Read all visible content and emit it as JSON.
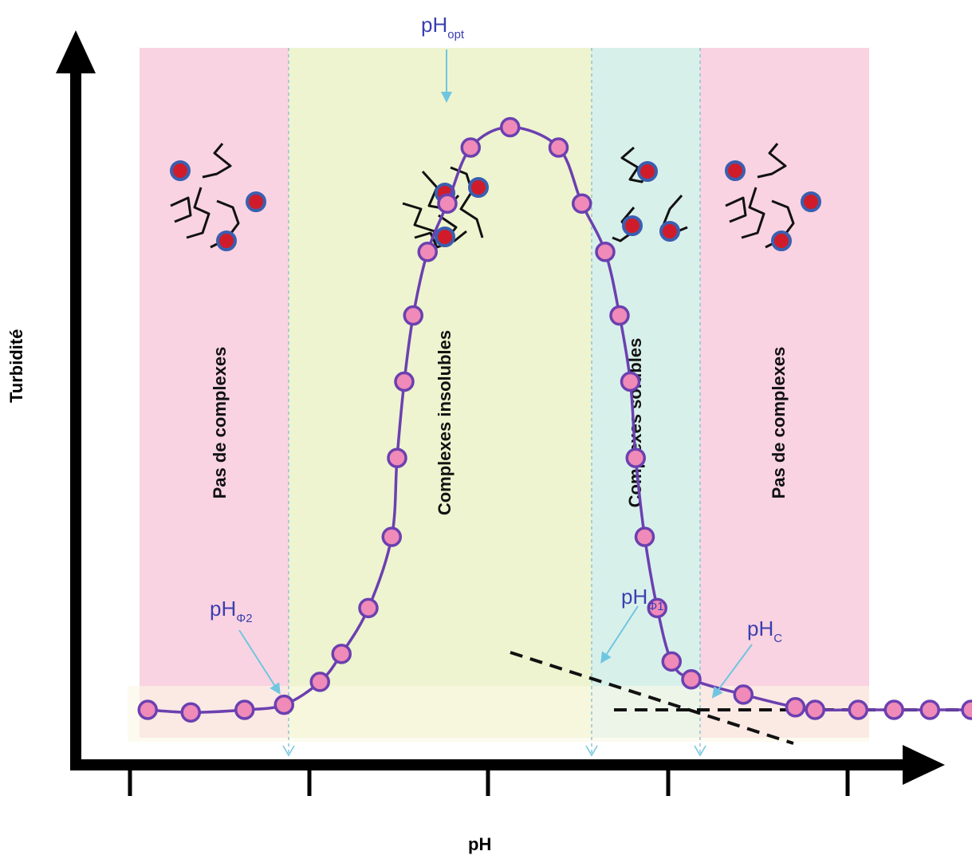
{
  "chart_data": {
    "type": "line",
    "xlabel": "pH",
    "ylabel": "Turbidité",
    "zones": [
      {
        "name": "Pas de complexes",
        "color": "#f9d3e1"
      },
      {
        "name": "Complexes insolubles",
        "color": "#eef4cf"
      },
      {
        "name": "Complexes solubles",
        "color": "#d8f0ea"
      },
      {
        "name": "Pas de complexes",
        "color": "#f9d3e1"
      }
    ],
    "markers": {
      "opt": {
        "base": "pH",
        "sub": "opt"
      },
      "phi2": {
        "base": "pH",
        "sub": "Φ2"
      },
      "phi1": {
        "base": "pH",
        "sub": "Φ1"
      },
      "c": {
        "base": "pH",
        "sub": "C"
      }
    },
    "series": [
      {
        "x": [
          0.09,
          0.33,
          0.63,
          0.85,
          1.05,
          1.17,
          1.32,
          1.45,
          1.48,
          1.52,
          1.57,
          1.65,
          1.76,
          1.89,
          2.11,
          2.38,
          2.51,
          2.64,
          2.72,
          2.78,
          2.81,
          2.86,
          2.93,
          3.01,
          3.12,
          3.41,
          3.7,
          3.81,
          4.05,
          4.25,
          4.45,
          4.68,
          4.85
        ],
        "y": [
          0.0,
          -0.01,
          0.0,
          0.02,
          0.11,
          0.22,
          0.4,
          0.68,
          0.99,
          1.29,
          1.55,
          1.8,
          1.99,
          2.21,
          2.29,
          2.21,
          1.99,
          1.8,
          1.55,
          1.29,
          0.99,
          0.68,
          0.4,
          0.19,
          0.12,
          0.06,
          0.01,
          0.0,
          0.0,
          0.0,
          0.0,
          0.0,
          0.0
        ]
      }
    ],
    "line_color": "#6b40b0",
    "point_color": "#f08ab8",
    "background_colors": {
      "pink": "#f9d3e1",
      "green": "#eef4cf",
      "cyan": "#d8f0ea"
    }
  }
}
